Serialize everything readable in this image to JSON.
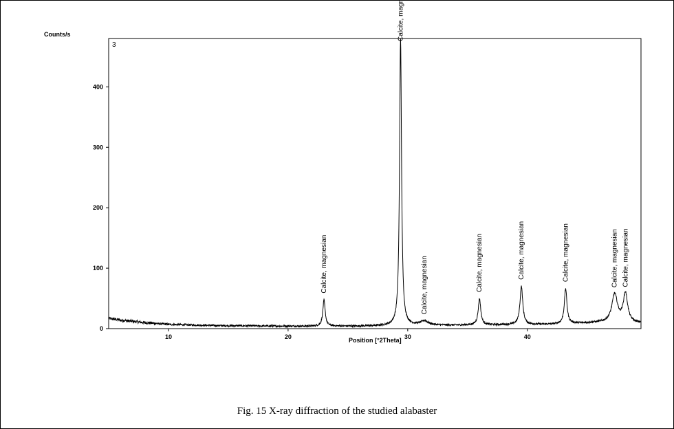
{
  "caption": "Fig. 15 X-ray diffraction of the studied alabaster",
  "chart_data": {
    "type": "line",
    "ylabel": "Counts/s",
    "xlabel": "Position [°2Theta]",
    "panel_label": "3",
    "xlim": [
      5,
      49.5
    ],
    "ylim": [
      0,
      480
    ],
    "x_ticks": [
      10,
      20,
      30,
      40
    ],
    "y_ticks": [
      0,
      100,
      200,
      300,
      400
    ],
    "grid": false,
    "line_color": "#000000",
    "baseline": [
      {
        "x": 5,
        "y": 17
      },
      {
        "x": 6,
        "y": 14
      },
      {
        "x": 8,
        "y": 10
      },
      {
        "x": 10,
        "y": 7
      },
      {
        "x": 14,
        "y": 5
      },
      {
        "x": 20,
        "y": 4
      },
      {
        "x": 26,
        "y": 4
      },
      {
        "x": 30,
        "y": 5
      },
      {
        "x": 36,
        "y": 6
      },
      {
        "x": 42,
        "y": 7
      },
      {
        "x": 46,
        "y": 10
      },
      {
        "x": 49.5,
        "y": 9
      }
    ],
    "peaks": [
      {
        "x": 23.0,
        "height": 43,
        "width": 0.12,
        "label": "Calcite, magnesian"
      },
      {
        "x": 29.4,
        "height": 475,
        "width": 0.1,
        "label": "Calcite, magnesian"
      },
      {
        "x": 31.4,
        "height": 7,
        "width": 0.4,
        "label": "Calcite, magnesian"
      },
      {
        "x": 36.0,
        "height": 43,
        "width": 0.13,
        "label": "Calcite, magnesian"
      },
      {
        "x": 39.5,
        "height": 63,
        "width": 0.14,
        "label": "Calcite, magnesian"
      },
      {
        "x": 43.2,
        "height": 58,
        "width": 0.13,
        "label": "Calcite, magnesian"
      },
      {
        "x": 47.3,
        "height": 47,
        "width": 0.28,
        "label": "Calcite, magnesian"
      },
      {
        "x": 48.2,
        "height": 48,
        "width": 0.22,
        "label": "Calcite, magnesian"
      }
    ]
  }
}
